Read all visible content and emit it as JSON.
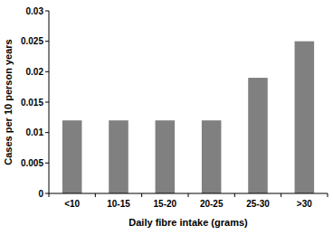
{
  "chart_data": {
    "type": "bar",
    "x_label": "Daily fibre intake (grams)",
    "y_label": "Cases per 10 person years",
    "categories": [
      "<10",
      "10-15",
      "15-20",
      "20-25",
      "25-30",
      ">30"
    ],
    "values": [
      0.012,
      0.012,
      0.012,
      0.012,
      0.019,
      0.025
    ],
    "color": "#808080",
    "ylim": [
      0,
      0.03
    ],
    "yticks": [
      0,
      0.005,
      0.01,
      0.015,
      0.02,
      0.025,
      0.03
    ],
    "grid": false
  }
}
